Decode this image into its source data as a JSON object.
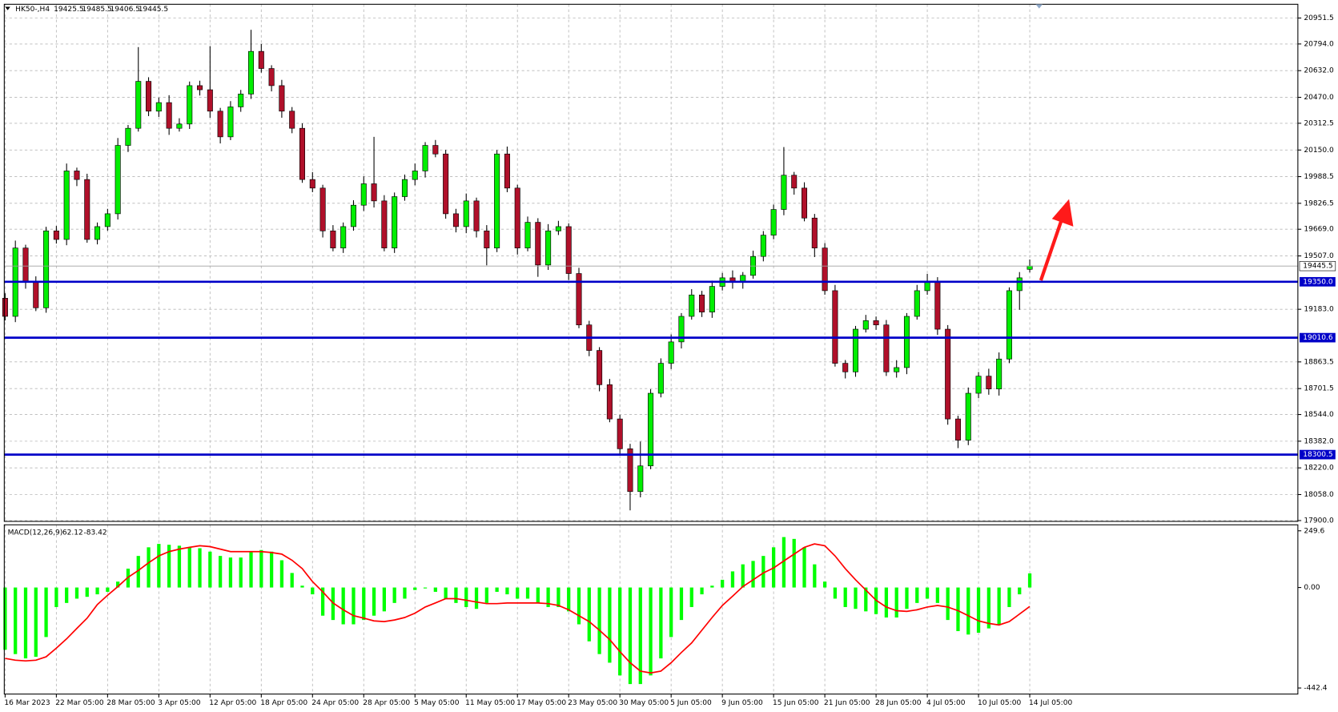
{
  "chart_data": {
    "type": "candlestick",
    "symbol": "HK50-,H4",
    "categories": [
      "16 Mar 2023",
      null,
      null,
      null,
      null,
      "22 Mar 05:00",
      null,
      null,
      null,
      null,
      "28 Mar 05:00",
      null,
      null,
      null,
      null,
      "3 Apr 05:00",
      null,
      null,
      null,
      null,
      "12 Apr 05:00",
      null,
      null,
      null,
      null,
      "18 Apr 05:00",
      null,
      null,
      null,
      null,
      "24 Apr 05:00",
      null,
      null,
      null,
      null,
      "28 Apr 05:00",
      null,
      null,
      null,
      null,
      "5 May 05:00",
      null,
      null,
      null,
      null,
      "11 May 05:00",
      null,
      null,
      null,
      null,
      "17 May 05:00",
      null,
      null,
      null,
      null,
      "23 May 05:00",
      null,
      null,
      null,
      null,
      "30 May 05:00",
      null,
      null,
      null,
      null,
      "5 Jun 05:00",
      null,
      null,
      null,
      null,
      "9 Jun 05:00",
      null,
      null,
      null,
      null,
      "15 Jun 05:00",
      null,
      null,
      null,
      null,
      "21 Jun 05:00",
      null,
      null,
      null,
      null,
      "28 Jun 05:00",
      null,
      null,
      null,
      null,
      "4 Jul 05:00",
      null,
      null,
      null,
      null,
      "10 Jul 05:00",
      null,
      null,
      null,
      null,
      "14 Jul 05:00"
    ],
    "open": [
      19250,
      19140,
      19555,
      19348,
      19192,
      19659,
      19607,
      20023,
      19971,
      19607,
      19685,
      19763,
      20178,
      20282,
      20567,
      20386,
      20438,
      20282,
      20308,
      20541,
      20516,
      20386,
      20230,
      20412,
      20490,
      20749,
      20645,
      20541,
      20386,
      20282,
      19971,
      19919,
      19659,
      19555,
      19685,
      19815,
      19945,
      19841,
      19555,
      19867,
      19971,
      20023,
      20178,
      20126,
      19763,
      19685,
      19841,
      19659,
      19555,
      20126,
      19919,
      19555,
      19711,
      19452,
      19659,
      19685,
      19400,
      19088,
      18933,
      18725,
      18517,
      18336,
      18076,
      18232,
      18673,
      18855,
      18985,
      19140,
      19270,
      19166,
      19322,
      19374,
      19348,
      19389,
      19504,
      19633,
      19789,
      19997,
      19919,
      19737,
      19555,
      19296,
      18855,
      18803,
      19062,
      19114,
      19088,
      18803,
      18829,
      19140,
      19296,
      19348,
      19062,
      18517,
      18388,
      18673,
      18777,
      18699,
      18881,
      19296,
      19425.5
    ],
    "high": [
      19280,
      19600,
      19575,
      19383,
      19684,
      19689,
      20068,
      20043,
      20006,
      19710,
      19793,
      20223,
      20302,
      20775,
      20592,
      20468,
      20483,
      20343,
      20566,
      20571,
      20780,
      20406,
      20447,
      20515,
      20880,
      20794,
      20665,
      20576,
      20411,
      20312,
      20016,
      19939,
      19694,
      19710,
      19845,
      19990,
      20230,
      19876,
      19892,
      20001,
      20068,
      20198,
      20211,
      20151,
      19793,
      19886,
      19861,
      19694,
      20150,
      20171,
      19939,
      19746,
      19736,
      19700,
      19720,
      19705,
      19435,
      19113,
      18953,
      18760,
      18542,
      18366,
      18380,
      18698,
      18885,
      19030,
      19160,
      19305,
      19295,
      19357,
      19404,
      19419,
      19409,
      19539,
      19658,
      19819,
      20168,
      20017,
      19954,
      19762,
      19585,
      19331,
      18875,
      19082,
      19149,
      19139,
      19118,
      18874,
      19160,
      19331,
      19398,
      19378,
      19087,
      18537,
      18708,
      18802,
      18822,
      18921,
      19316,
      19409,
      19485.5
    ],
    "low": [
      19115,
      19105,
      19308,
      19172,
      19162,
      19582,
      19572,
      19931,
      19587,
      19577,
      19660,
      19728,
      20138,
      20262,
      20356,
      20351,
      20242,
      20262,
      20278,
      20481,
      20346,
      20190,
      20210,
      20382,
      20460,
      20620,
      20506,
      20346,
      20252,
      19951,
      19894,
      19619,
      19535,
      19525,
      19660,
      19780,
      19801,
      19535,
      19525,
      19842,
      19936,
      19983,
      20106,
      19733,
      19650,
      19645,
      19619,
      19450,
      19530,
      19894,
      19515,
      19535,
      19380,
      19422,
      19634,
      19360,
      19068,
      18898,
      18685,
      18497,
      18306,
      17962,
      18041,
      18212,
      18648,
      18820,
      18945,
      19120,
      19136,
      19131,
      19297,
      19308,
      19308,
      19369,
      19474,
      19608,
      19754,
      19879,
      19717,
      19500,
      19271,
      18835,
      18763,
      18773,
      19042,
      19058,
      18778,
      18768,
      18789,
      19120,
      19271,
      19027,
      18482,
      18340,
      18358,
      18643,
      18664,
      18659,
      18856,
      19180,
      19406.5
    ],
    "close": [
      19140,
      19555,
      19348,
      19192,
      19659,
      19607,
      20023,
      19971,
      19607,
      19685,
      19763,
      20178,
      20282,
      20567,
      20386,
      20438,
      20282,
      20308,
      20541,
      20516,
      20386,
      20230,
      20412,
      20490,
      20749,
      20645,
      20541,
      20386,
      20282,
      19971,
      19919,
      19659,
      19555,
      19685,
      19815,
      19945,
      19841,
      19555,
      19867,
      19971,
      20023,
      20178,
      20126,
      19763,
      19685,
      19841,
      19659,
      19555,
      20126,
      19919,
      19555,
      19711,
      19452,
      19659,
      19685,
      19400,
      19088,
      18933,
      18725,
      18517,
      18336,
      18076,
      18232,
      18673,
      18855,
      18985,
      19140,
      19270,
      19166,
      19322,
      19374,
      19348,
      19389,
      19504,
      19633,
      19789,
      19997,
      19919,
      19737,
      19555,
      19296,
      18855,
      18803,
      19062,
      19114,
      19088,
      18803,
      18829,
      19140,
      19296,
      19348,
      19062,
      18517,
      18388,
      18673,
      18777,
      18699,
      18881,
      19296,
      19374,
      19445.5
    ],
    "up_color": "#00ee00",
    "down_color": "#b0102a",
    "ylim": [
      17895,
      21035
    ],
    "yticks": [
      {
        "value": 20951.5,
        "label": "20951.5"
      },
      {
        "value": 20794,
        "label": "20794.0"
      },
      {
        "value": 20632,
        "label": "20632.0"
      },
      {
        "value": 20470,
        "label": "20470.0"
      },
      {
        "value": 20312.5,
        "label": "20312.5"
      },
      {
        "value": 20150,
        "label": "20150.0"
      },
      {
        "value": 19988.5,
        "label": "19988.5"
      },
      {
        "value": 19826.5,
        "label": "19826.5"
      },
      {
        "value": 19669,
        "label": "19669.0"
      },
      {
        "value": 19507,
        "label": "19507.0"
      },
      {
        "value": 19183,
        "label": "19183.0"
      },
      {
        "value": 18863.5,
        "label": "18863.5"
      },
      {
        "value": 18701.5,
        "label": "18701.5"
      },
      {
        "value": 18544,
        "label": "18544.0"
      },
      {
        "value": 18382,
        "label": "18382.0"
      },
      {
        "value": 18220,
        "label": "18220.0"
      },
      {
        "value": 18058,
        "label": "18058.0"
      },
      {
        "value": 17900,
        "label": "17900.0"
      }
    ],
    "grid": true,
    "levels": [
      {
        "value": 19350,
        "label": "19350.0"
      },
      19010.6,
      18300.5
    ],
    "level_color": "#0000c8",
    "indicator": {
      "type": "macd",
      "name": "MACD(12,26,9)",
      "histogram": [
        -274,
        -293,
        -312,
        -305,
        -218,
        -86,
        -68,
        -49,
        -41,
        -30,
        -19,
        26,
        83,
        139,
        177,
        192,
        188,
        184,
        177,
        173,
        158,
        139,
        132,
        132,
        158,
        165,
        158,
        120,
        64,
        8,
        -30,
        -124,
        -143,
        -162,
        -162,
        -143,
        -124,
        -105,
        -68,
        -49,
        -11,
        -4,
        -19,
        -49,
        -68,
        -86,
        -94,
        -68,
        -19,
        -30,
        -49,
        -49,
        -68,
        -86,
        -86,
        -105,
        -162,
        -237,
        -293,
        -331,
        -387,
        -425,
        -425,
        -387,
        -312,
        -218,
        -143,
        -86,
        -30,
        8,
        34,
        71,
        102,
        117,
        139,
        177,
        222,
        214,
        177,
        102,
        26,
        -49,
        -86,
        -94,
        -105,
        -117,
        -132,
        -132,
        -94,
        -68,
        -49,
        -68,
        -143,
        -192,
        -207,
        -199,
        -180,
        -162,
        -86,
        -30,
        62.12
      ],
      "signal": [
        -312,
        -320,
        -323,
        -320,
        -305,
        -267,
        -226,
        -180,
        -135,
        -75,
        -34,
        4,
        45,
        75,
        109,
        139,
        158,
        169,
        177,
        184,
        180,
        169,
        158,
        158,
        158,
        158,
        154,
        147,
        120,
        83,
        26,
        -19,
        -68,
        -98,
        -124,
        -135,
        -147,
        -150,
        -143,
        -132,
        -113,
        -86,
        -68,
        -49,
        -49,
        -56,
        -64,
        -71,
        -71,
        -68,
        -68,
        -68,
        -68,
        -71,
        -79,
        -98,
        -124,
        -150,
        -188,
        -229,
        -282,
        -331,
        -368,
        -376,
        -368,
        -331,
        -286,
        -244,
        -188,
        -132,
        -79,
        -38,
        4,
        34,
        64,
        86,
        117,
        147,
        177,
        192,
        184,
        139,
        83,
        34,
        -11,
        -56,
        -86,
        -102,
        -105,
        -98,
        -86,
        -79,
        -86,
        -102,
        -124,
        -147,
        -158,
        -165,
        -150,
        -117,
        -83.42
      ],
      "hist_color": "#00ff00",
      "signal_color": "#ff0000",
      "ylim": [
        -469,
        276
      ],
      "yticks": [
        249.6,
        {
          "value": 0,
          "label": "0.00"
        },
        -442.4
      ]
    }
  }
}
